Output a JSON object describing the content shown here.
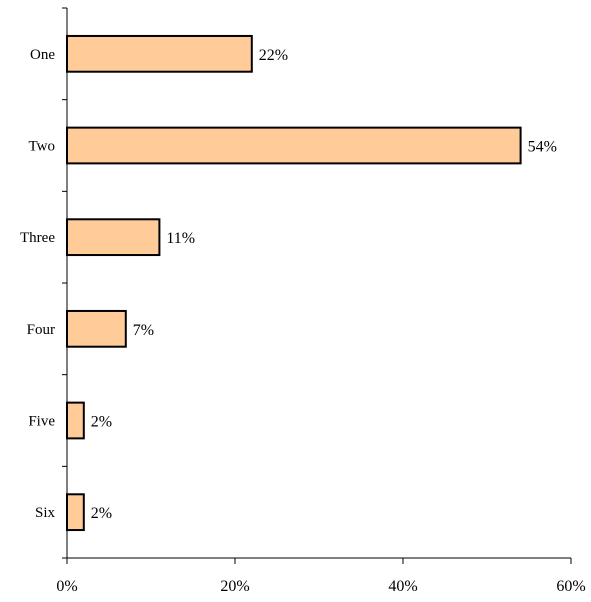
{
  "chart_data": {
    "type": "bar",
    "orientation": "horizontal",
    "categories": [
      "One",
      "Two",
      "Three",
      "Four",
      "Five",
      "Six"
    ],
    "values": [
      22,
      54,
      11,
      7,
      2,
      2
    ],
    "value_labels": [
      "22%",
      "54%",
      "11%",
      "7%",
      "2%",
      "2%"
    ],
    "xlim": [
      0,
      60
    ],
    "x_ticks": [
      0,
      20,
      40,
      60
    ],
    "x_tick_labels": [
      "0%",
      "20%",
      "40%",
      "60%"
    ],
    "bar_fill": "#FFCC99",
    "bar_stroke": "#000000",
    "grid": false,
    "legend": "none"
  }
}
